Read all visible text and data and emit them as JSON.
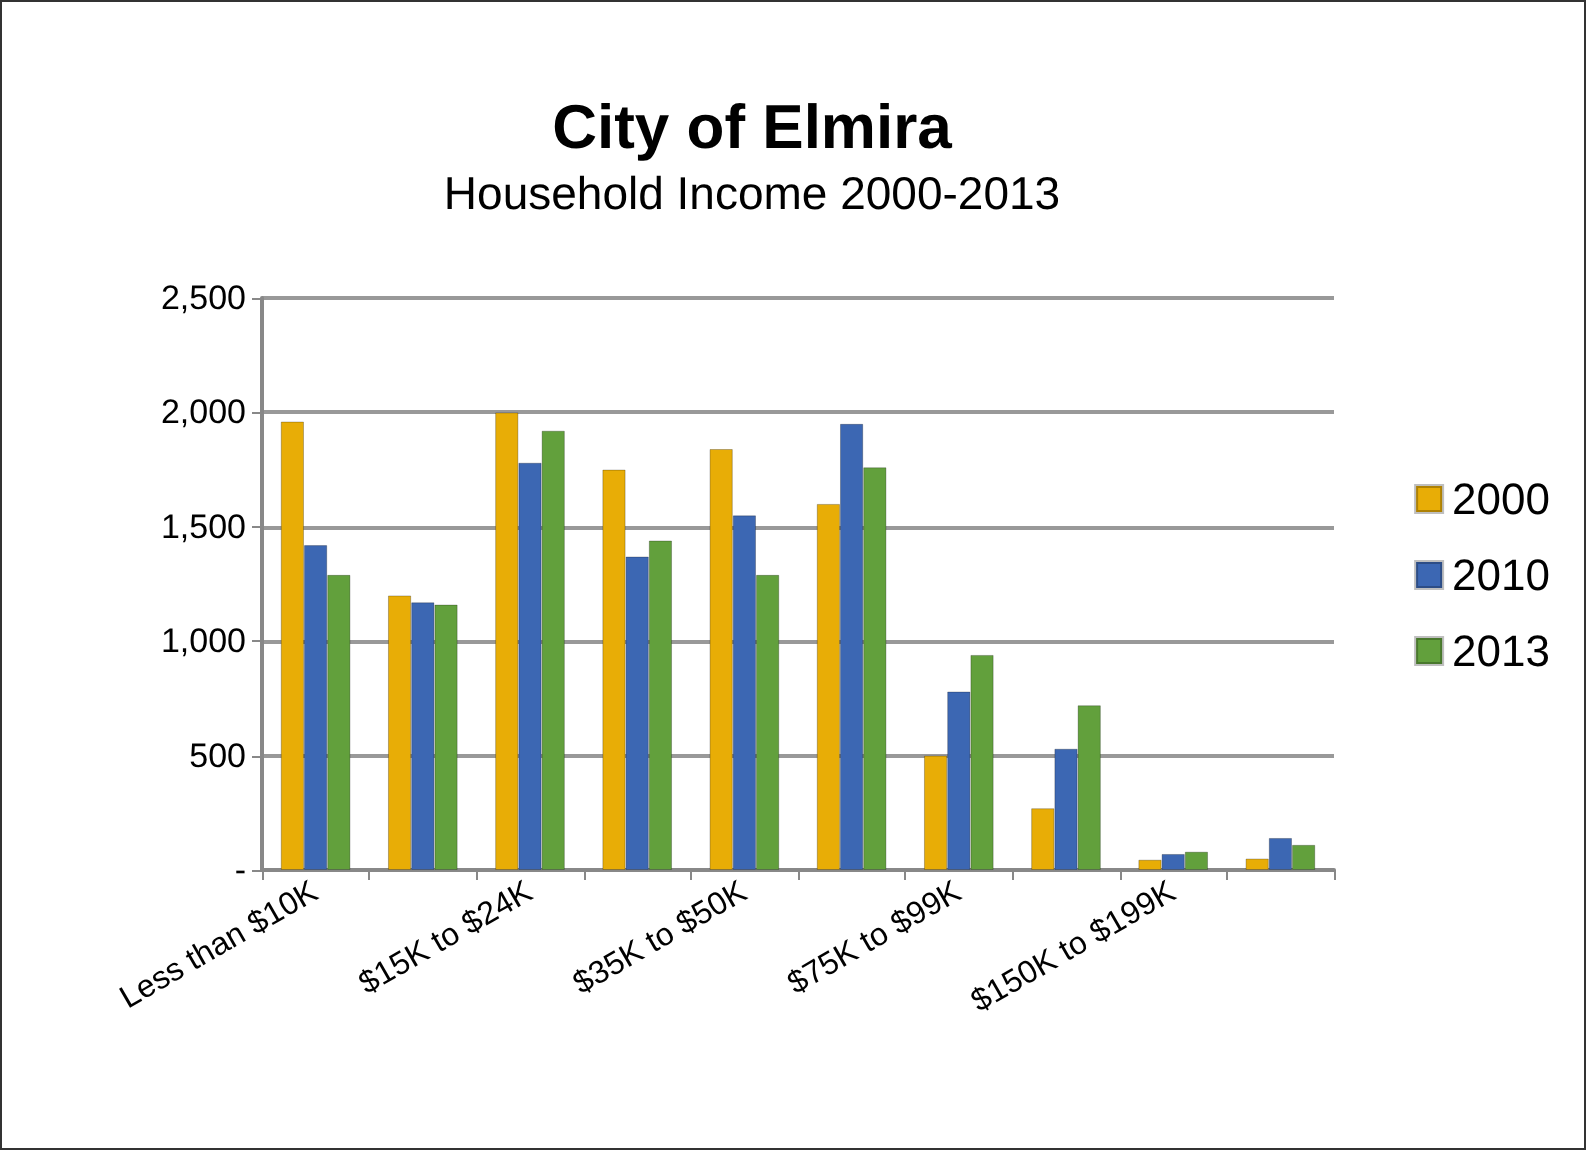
{
  "chart_data": {
    "type": "bar",
    "title": "City of Elmira",
    "subtitle": "Household Income 2000-2013",
    "categories": [
      "Less than $10K",
      null,
      "$15K to $24K",
      null,
      "$35K to $50K",
      null,
      "$75K to $99K",
      null,
      "$150K to $199K",
      null
    ],
    "series": [
      {
        "name": "2000",
        "color": "#e8ad06",
        "values": [
          1960,
          1200,
          2000,
          1750,
          1840,
          1600,
          500,
          270,
          45,
          50
        ]
      },
      {
        "name": "2010",
        "color": "#3c67b3",
        "values": [
          1420,
          1170,
          1780,
          1370,
          1550,
          1950,
          780,
          530,
          70,
          140
        ]
      },
      {
        "name": "2013",
        "color": "#62a03c",
        "values": [
          1290,
          1160,
          1920,
          1440,
          1290,
          1760,
          940,
          720,
          80,
          110
        ]
      }
    ],
    "ylim": [
      0,
      2500
    ],
    "yticks": [
      {
        "value": 0,
        "label": "-"
      },
      500,
      {
        "value": 1000,
        "label": "1,000"
      },
      {
        "value": 1500,
        "label": "1,500"
      },
      {
        "value": 2000,
        "label": "2,000"
      },
      {
        "value": 2500,
        "label": "2,500"
      }
    ],
    "grid": "y",
    "legend": "right"
  }
}
